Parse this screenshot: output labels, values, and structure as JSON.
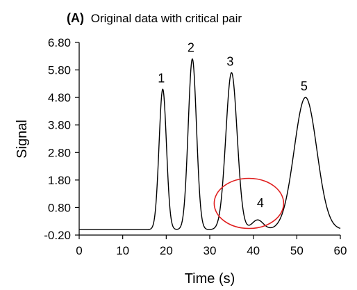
{
  "chart_data": {
    "type": "line",
    "title_prefix": "(A)",
    "title": "Original data with critical pair",
    "xlabel": "Time (s)",
    "ylabel": "Signal",
    "xlim": [
      0,
      60
    ],
    "ylim": [
      -0.2,
      6.8
    ],
    "x_ticks": [
      0,
      10,
      20,
      30,
      40,
      50,
      60
    ],
    "x_tick_labels": [
      "0",
      "10",
      "20",
      "30",
      "40",
      "50",
      "60"
    ],
    "y_ticks": [
      -0.2,
      0.8,
      1.8,
      2.8,
      3.8,
      4.8,
      5.8,
      6.8
    ],
    "y_tick_labels": [
      "-0.20",
      "0.80",
      "1.80",
      "2.80",
      "3.80",
      "4.80",
      "5.80",
      "6.80"
    ],
    "baseline": 0.0,
    "series_color": "#000000",
    "highlight_color": "#e02020",
    "peaks": [
      {
        "label": "1",
        "center": 19.2,
        "height": 5.1,
        "sigma": 0.85
      },
      {
        "label": "2",
        "center": 26.0,
        "height": 6.2,
        "sigma": 0.95
      },
      {
        "label": "3",
        "center": 35.0,
        "height": 5.7,
        "sigma": 1.3
      },
      {
        "label": "4",
        "center": 41.0,
        "height": 0.35,
        "sigma": 1.3
      },
      {
        "label": "5",
        "center": 52.0,
        "height": 4.8,
        "sigma": 2.6
      }
    ],
    "highlighted_peaks": [
      "3",
      "4"
    ]
  }
}
